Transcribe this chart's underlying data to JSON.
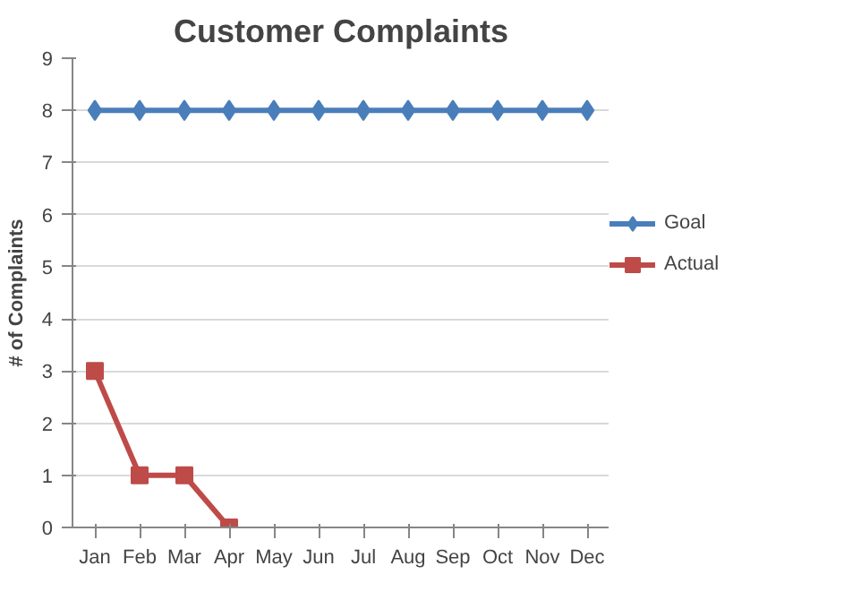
{
  "chart_data": {
    "type": "line",
    "title": "Customer Complaints",
    "ylabel": "# of Complaints",
    "categories": [
      "Jan",
      "Feb",
      "Mar",
      "Apr",
      "May",
      "Jun",
      "Jul",
      "Aug",
      "Sep",
      "Oct",
      "Nov",
      "Dec"
    ],
    "series": [
      {
        "name": "Goal",
        "color": "#4a7ebb",
        "marker": "diamond",
        "values": [
          8,
          8,
          8,
          8,
          8,
          8,
          8,
          8,
          8,
          8,
          8,
          8
        ]
      },
      {
        "name": "Actual",
        "color": "#be4b48",
        "marker": "square",
        "values": [
          3,
          1,
          1,
          0,
          null,
          null,
          null,
          null,
          null,
          null,
          null,
          null
        ]
      }
    ],
    "ylim": [
      0,
      9
    ],
    "yticks": [
      0,
      1,
      2,
      3,
      4,
      5,
      6,
      7,
      8,
      9
    ],
    "grid": "y",
    "legend": "right",
    "line_style": "solid"
  }
}
